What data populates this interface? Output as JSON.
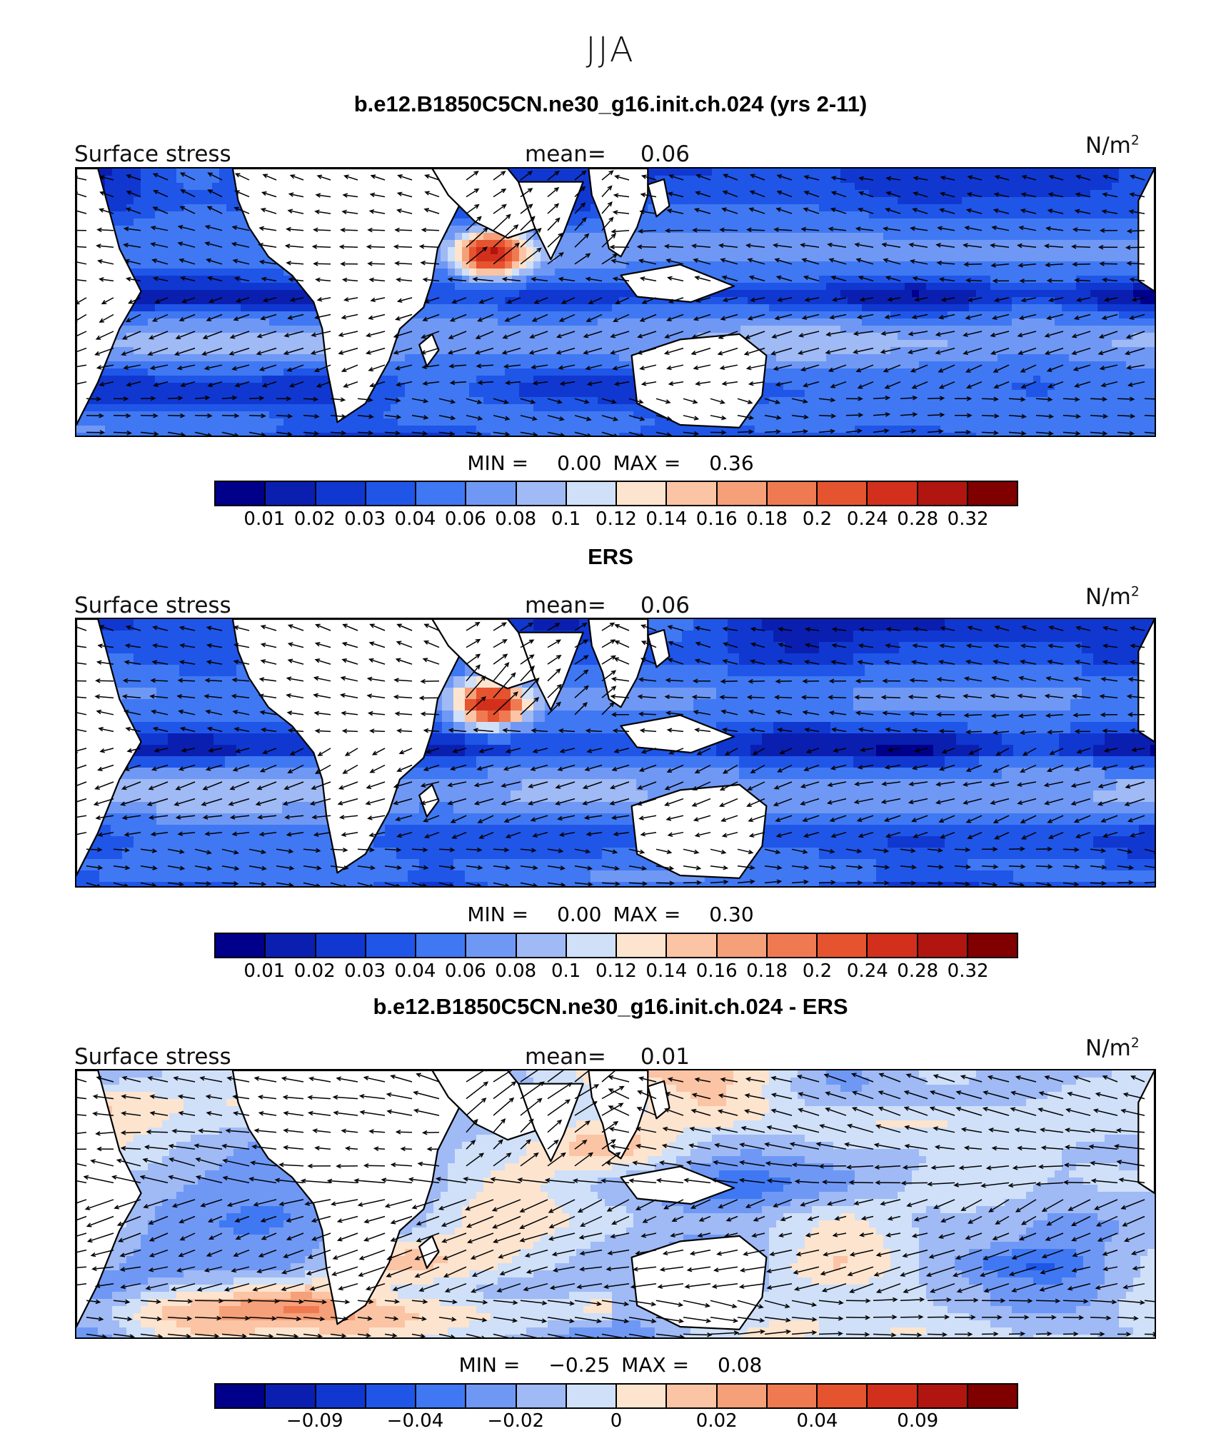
{
  "season": "JJA",
  "panels": [
    {
      "title": "b.e12.B1850C5CN.ne30_g16.init.ch.024 (yrs 2-11)",
      "variable": "Surface stress",
      "mean_label": "mean=",
      "mean_value": "0.06",
      "units": "N/m",
      "units_exp": "2",
      "min_label": "MIN =",
      "min_value": "0.00",
      "max_label": "MAX =",
      "max_value": "0.36",
      "colorbar_ticks": [
        "0.01",
        "0.02",
        "0.03",
        "0.04",
        "0.06",
        "0.08",
        "0.1",
        "0.12",
        "0.14",
        "0.16",
        "0.18",
        "0.2",
        "0.24",
        "0.28",
        "0.32"
      ],
      "field_type": "magnitude"
    },
    {
      "title": "ERS",
      "variable": "Surface stress",
      "mean_label": "mean=",
      "mean_value": "0.06",
      "units": "N/m",
      "units_exp": "2",
      "min_label": "MIN =",
      "min_value": "0.00",
      "max_label": "MAX =",
      "max_value": "0.30",
      "colorbar_ticks": [
        "0.01",
        "0.02",
        "0.03",
        "0.04",
        "0.06",
        "0.08",
        "0.1",
        "0.12",
        "0.14",
        "0.16",
        "0.18",
        "0.2",
        "0.24",
        "0.28",
        "0.32"
      ],
      "field_type": "magnitude"
    },
    {
      "title": "b.e12.B1850C5CN.ne30_g16.init.ch.024 - ERS",
      "variable": "Surface stress",
      "mean_label": "mean=",
      "mean_value": "0.01",
      "units": "N/m",
      "units_exp": "2",
      "min_label": "MIN =",
      "min_value": "−0.25",
      "max_label": "MAX =",
      "max_value": "0.08",
      "colorbar_ticks": [
        "−0.09",
        "−0.04",
        "−0.02",
        "0",
        "0.02",
        "0.04",
        "0.09"
      ],
      "field_type": "difference"
    }
  ],
  "colors": {
    "scale": [
      "#00008a",
      "#0a1fb0",
      "#1038d0",
      "#1f56e8",
      "#3f78f2",
      "#6f98f5",
      "#9fbaf5",
      "#cfe0f8",
      "#fde4cf",
      "#fbc4a4",
      "#f6a07a",
      "#ef7a52",
      "#e6532f",
      "#d2301c",
      "#b01510",
      "#800000"
    ],
    "land": "#ffffff",
    "coast": "#000000",
    "arrow": "#000000"
  }
}
